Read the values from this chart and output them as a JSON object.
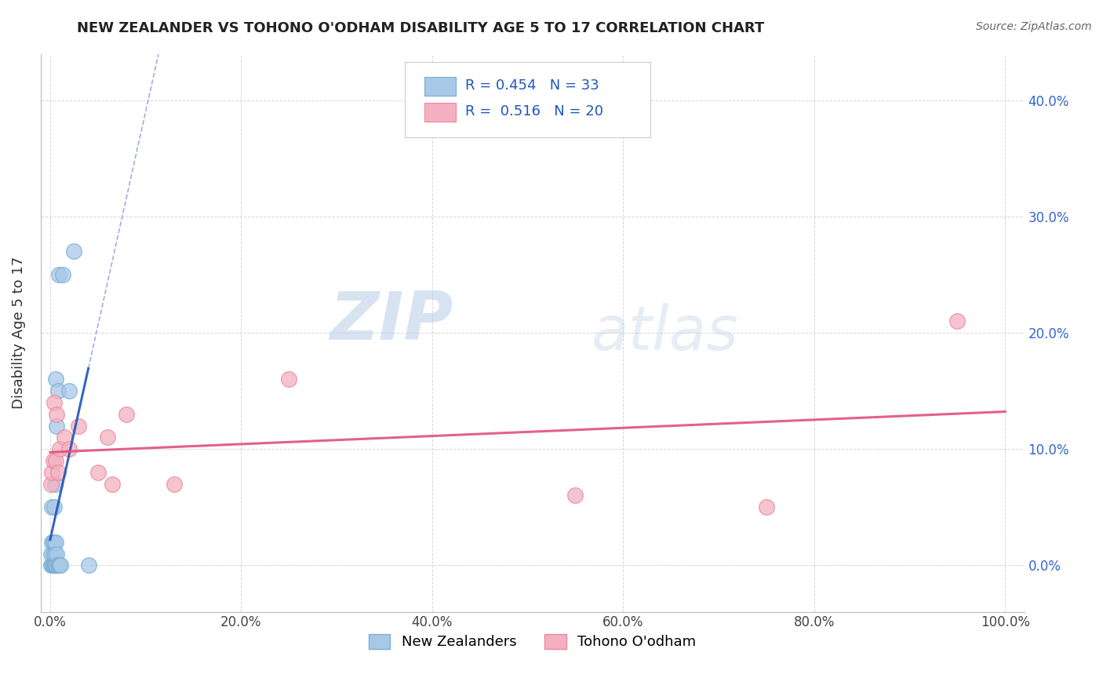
{
  "title": "NEW ZEALANDER VS TOHONO O'ODHAM DISABILITY AGE 5 TO 17 CORRELATION CHART",
  "source": "Source: ZipAtlas.com",
  "ylabel": "Disability Age 5 to 17",
  "legend_label_1": "New Zealanders",
  "legend_label_2": "Tohono O'odham",
  "R1": 0.454,
  "N1": 33,
  "R2": 0.516,
  "N2": 20,
  "color1": "#a8c8e8",
  "color2": "#f4b0c0",
  "color1_edge": "#7aafd4",
  "color2_edge": "#e888a0",
  "trendline1_color": "#2255bb",
  "trendline2_color": "#e0507a",
  "xlim": [
    -0.01,
    1.02
  ],
  "ylim": [
    -0.04,
    0.44
  ],
  "xticks": [
    0.0,
    0.2,
    0.4,
    0.6,
    0.8,
    1.0
  ],
  "xtick_labels": [
    "0.0%",
    "20.0%",
    "40.0%",
    "60.0%",
    "80.0%",
    "100.0%"
  ],
  "yticks": [
    0.0,
    0.1,
    0.2,
    0.3,
    0.4
  ],
  "ytick_labels": [
    "0.0%",
    "10.0%",
    "20.0%",
    "30.0%",
    "40.0%"
  ],
  "nz_x": [
    0.001,
    0.001,
    0.002,
    0.002,
    0.002,
    0.003,
    0.003,
    0.003,
    0.003,
    0.004,
    0.004,
    0.004,
    0.004,
    0.005,
    0.005,
    0.005,
    0.005,
    0.006,
    0.006,
    0.006,
    0.007,
    0.007,
    0.007,
    0.008,
    0.008,
    0.009,
    0.009,
    0.01,
    0.011,
    0.013,
    0.02,
    0.025,
    0.04
  ],
  "nz_y": [
    0.0,
    0.01,
    0.0,
    0.02,
    0.05,
    0.0,
    0.0,
    0.01,
    0.02,
    0.0,
    0.0,
    0.02,
    0.05,
    0.0,
    0.0,
    0.01,
    0.07,
    0.0,
    0.02,
    0.16,
    0.0,
    0.01,
    0.12,
    0.0,
    0.15,
    0.0,
    0.25,
    0.0,
    0.0,
    0.25,
    0.15,
    0.27,
    0.0
  ],
  "tod_x": [
    0.001,
    0.002,
    0.003,
    0.004,
    0.006,
    0.007,
    0.008,
    0.01,
    0.015,
    0.02,
    0.03,
    0.05,
    0.06,
    0.065,
    0.08,
    0.13,
    0.25,
    0.55,
    0.75,
    0.95
  ],
  "tod_y": [
    0.07,
    0.08,
    0.09,
    0.14,
    0.09,
    0.13,
    0.08,
    0.1,
    0.11,
    0.1,
    0.12,
    0.08,
    0.11,
    0.07,
    0.13,
    0.07,
    0.16,
    0.06,
    0.05,
    0.21
  ],
  "watermark_zip": "ZIP",
  "watermark_atlas": "atlas",
  "background_color": "#ffffff",
  "grid_color": "#cccccc",
  "right_tick_color": "#3366cc"
}
